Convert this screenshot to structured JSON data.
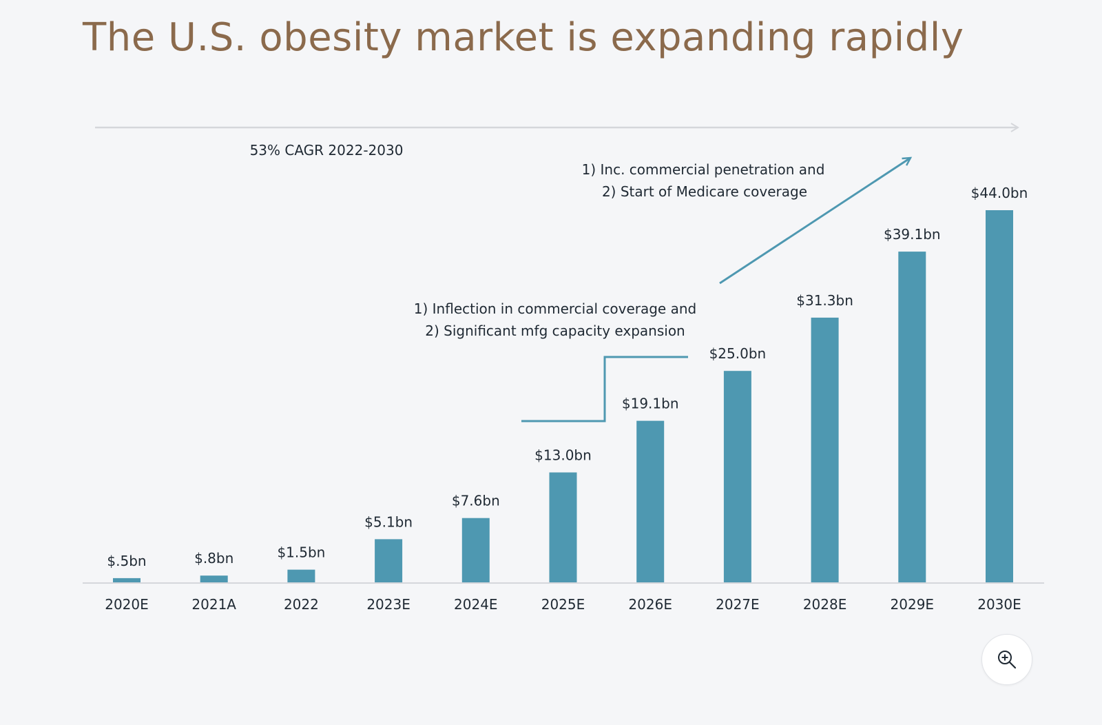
{
  "title": "The U.S. obesity market is expanding rapidly",
  "cagr_label": "53% CAGR 2022-2030",
  "annotations": {
    "inflection": {
      "line1": "1) Inflection in commercial coverage and",
      "line2": "2) Significant mfg capacity expansion"
    },
    "medicare": {
      "line1": "1) Inc. commercial penetration and",
      "line2": "2) Start of Medicare coverage"
    }
  },
  "colors": {
    "title": "#8b6a4c",
    "bar": "#4e98b1",
    "annotation_line": "#4e98b1",
    "axis": "#d5d7db",
    "text": "#1f2933"
  },
  "icons": {
    "zoom": "zoom-in-icon"
  },
  "chart_data": {
    "type": "bar",
    "categories": [
      "2020E",
      "2021A",
      "2022",
      "2023E",
      "2024E",
      "2025E",
      "2026E",
      "2027E",
      "2028E",
      "2029E",
      "2030E"
    ],
    "values": [
      0.5,
      0.8,
      1.5,
      5.1,
      7.6,
      13.0,
      19.1,
      25.0,
      31.3,
      39.1,
      44.0
    ],
    "labels": [
      "$.5bn",
      "$.8bn",
      "$1.5bn",
      "$5.1bn",
      "$7.6bn",
      "$13.0bn",
      "$19.1bn",
      "$25.0bn",
      "$31.3bn",
      "$39.1bn",
      "$44.0bn"
    ],
    "title": "The U.S. obesity market is expanding rapidly",
    "xlabel": "",
    "ylabel": "",
    "ylim": [
      0,
      44.0
    ],
    "grid": false,
    "legend": "none"
  }
}
